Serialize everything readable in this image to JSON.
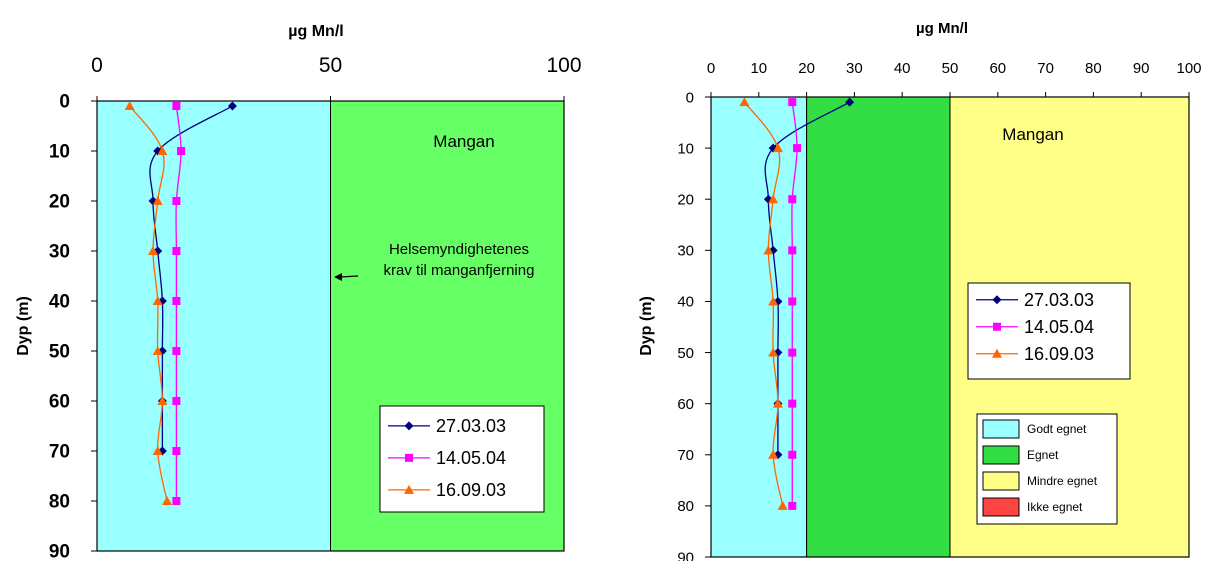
{
  "chart_data": [
    {
      "type": "line",
      "xlabel": "µg Mn/l",
      "ylabel": "Dyp (m)",
      "xlim": [
        0,
        100
      ],
      "ylim": [
        0,
        90
      ],
      "y_inverted": true,
      "x_axis_position": "top",
      "xticks": [
        0,
        50,
        100
      ],
      "yticks": [
        0,
        10,
        20,
        30,
        40,
        50,
        60,
        70,
        80,
        90
      ],
      "bands": [
        {
          "from": 0,
          "to": 50,
          "color": "#99ffff"
        },
        {
          "from": 50,
          "to": 100,
          "color": "#66ff66"
        }
      ],
      "annotations": [
        "Mangan",
        "Helsemyndighetenes",
        "krav til manganfjerning"
      ],
      "legend_placement": "bottom-right",
      "series": [
        {
          "name": "27.03.03",
          "color": "#000080",
          "marker": "diamond",
          "x": [
            29,
            13,
            12,
            13,
            14,
            14,
            14,
            14
          ],
          "y": [
            1,
            10,
            20,
            30,
            40,
            50,
            60,
            70
          ]
        },
        {
          "name": "14.05.04",
          "color": "#ff00ff",
          "marker": "square",
          "x": [
            17,
            18,
            17,
            17,
            17,
            17,
            17,
            17,
            17
          ],
          "y": [
            1,
            10,
            20,
            30,
            40,
            50,
            60,
            70,
            80
          ]
        },
        {
          "name": "16.09.03",
          "color": "#ff6600",
          "marker": "triangle",
          "x": [
            7,
            14,
            13,
            12,
            13,
            13,
            14,
            13,
            15
          ],
          "y": [
            1,
            10,
            20,
            30,
            40,
            50,
            60,
            70,
            80
          ]
        }
      ]
    },
    {
      "type": "line",
      "xlabel": "µg Mn/l",
      "ylabel": "Dyp (m)",
      "xlim": [
        0,
        100
      ],
      "ylim": [
        0,
        90
      ],
      "y_inverted": true,
      "x_axis_position": "top",
      "xticks": [
        0,
        10,
        20,
        30,
        40,
        50,
        60,
        70,
        80,
        90,
        100
      ],
      "yticks": [
        0,
        10,
        20,
        30,
        40,
        50,
        60,
        70,
        80,
        90
      ],
      "bands": [
        {
          "from": 0,
          "to": 20,
          "color": "#99ffff"
        },
        {
          "from": 20,
          "to": 50,
          "color": "#33dd44"
        },
        {
          "from": 50,
          "to": 100,
          "color": "#ffff88"
        }
      ],
      "annotations": [
        "Mangan"
      ],
      "legend_placement": "center-right",
      "series": [
        {
          "name": "27.03.03",
          "color": "#000080",
          "marker": "diamond",
          "x": [
            29,
            13,
            12,
            13,
            14,
            14,
            14,
            14
          ],
          "y": [
            1,
            10,
            20,
            30,
            40,
            50,
            60,
            70
          ]
        },
        {
          "name": "14.05.04",
          "color": "#ff00ff",
          "marker": "square",
          "x": [
            17,
            18,
            17,
            17,
            17,
            17,
            17,
            17,
            17
          ],
          "y": [
            1,
            10,
            20,
            30,
            40,
            50,
            60,
            70,
            80
          ]
        },
        {
          "name": "16.09.03",
          "color": "#ff6600",
          "marker": "triangle",
          "x": [
            7,
            14,
            13,
            12,
            13,
            13,
            14,
            13,
            15
          ],
          "y": [
            1,
            10,
            20,
            30,
            40,
            50,
            60,
            70,
            80
          ]
        }
      ],
      "class_legend": [
        {
          "label": "Godt egnet",
          "color": "#99ffff"
        },
        {
          "label": "Egnet",
          "color": "#33dd44"
        },
        {
          "label": "Mindre egnet",
          "color": "#ffff88"
        },
        {
          "label": "Ikke egnet",
          "color": "#ff4444"
        }
      ]
    }
  ]
}
